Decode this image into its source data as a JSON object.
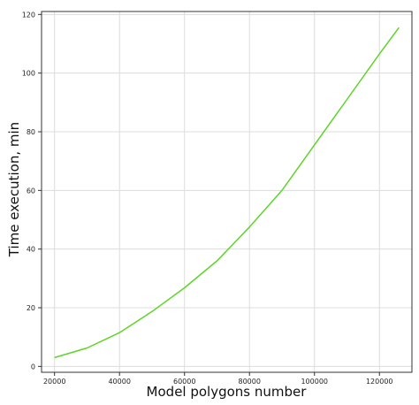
{
  "chart_data": {
    "type": "line",
    "title": "",
    "xlabel": "Model polygons number",
    "ylabel": "Time execution, min",
    "xlim": [
      16000,
      130000
    ],
    "ylim": [
      -2,
      121
    ],
    "xticks": [
      20000,
      40000,
      60000,
      80000,
      100000,
      120000
    ],
    "yticks": [
      0,
      20,
      40,
      60,
      80,
      100,
      120
    ],
    "grid": true,
    "legend": "none",
    "colors": {
      "line": "#5fd42a",
      "grid": "#dcdcdc",
      "axes": "#333333"
    },
    "series": [
      {
        "x": [
          20000,
          30000,
          40000,
          50000,
          60000,
          70000,
          80000,
          90000,
          100000,
          110000,
          120000,
          126000
        ],
        "y": [
          3,
          6.3,
          11.5,
          18.7,
          26.8,
          36,
          47.5,
          60,
          75.5,
          91,
          106.5,
          115.5
        ]
      }
    ]
  }
}
